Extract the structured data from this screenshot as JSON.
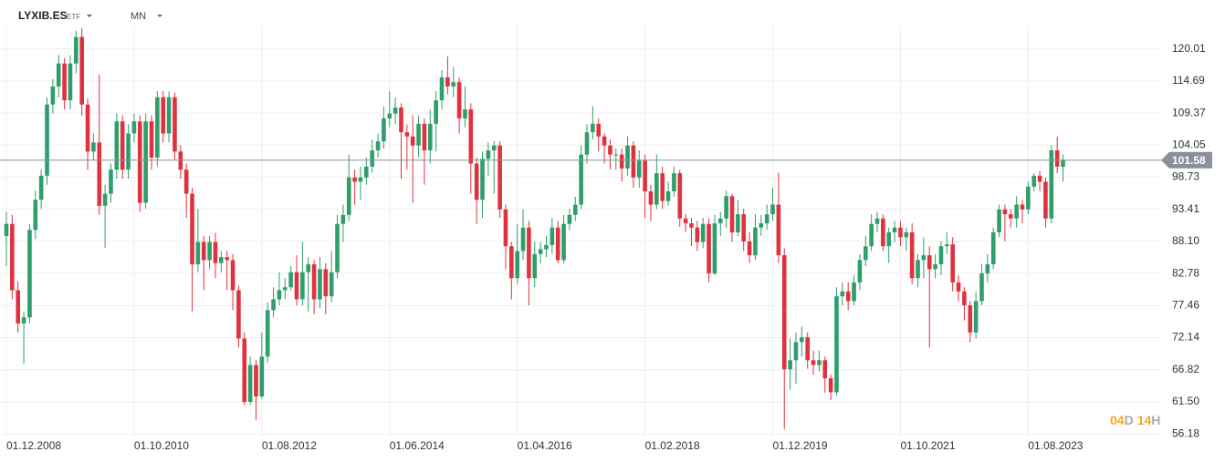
{
  "header": {
    "symbol": "LYXIB.ES",
    "asset_type": "ETF",
    "interval": "MN"
  },
  "countdown": {
    "days": "04",
    "day_unit": "D",
    "hours": "14",
    "hour_unit": "H"
  },
  "chart_data": {
    "type": "candlestick",
    "up_color": "#2e9e6b",
    "down_color": "#e0313f",
    "last_price": 101.58,
    "ylim": [
      55.6,
      123.9
    ],
    "yticks": [
      56.18,
      {
        "value": 61.5,
        "label": "61.50"
      },
      66.82,
      72.14,
      77.46,
      82.78,
      {
        "value": 88.1,
        "label": "88.10"
      },
      93.41,
      98.73,
      104.05,
      109.37,
      114.69,
      120.01
    ],
    "grid": true,
    "categories": [
      "01.12.2008",
      null,
      null,
      null,
      null,
      null,
      null,
      null,
      null,
      null,
      null,
      null,
      null,
      null,
      null,
      null,
      null,
      null,
      null,
      null,
      null,
      null,
      "01.10.2010",
      null,
      null,
      null,
      null,
      null,
      null,
      null,
      null,
      null,
      null,
      null,
      null,
      null,
      null,
      null,
      null,
      null,
      null,
      null,
      null,
      null,
      "01.08.2012",
      null,
      null,
      null,
      null,
      null,
      null,
      null,
      null,
      null,
      null,
      null,
      null,
      null,
      null,
      null,
      null,
      null,
      null,
      null,
      null,
      null,
      "01.06.2014",
      null,
      null,
      null,
      null,
      null,
      null,
      null,
      null,
      null,
      null,
      null,
      null,
      null,
      null,
      null,
      null,
      null,
      null,
      null,
      null,
      null,
      "01.04.2016",
      null,
      null,
      null,
      null,
      null,
      null,
      null,
      null,
      null,
      null,
      null,
      null,
      null,
      null,
      null,
      null,
      null,
      null,
      null,
      null,
      null,
      "01.02.2018",
      null,
      null,
      null,
      null,
      null,
      null,
      null,
      null,
      null,
      null,
      null,
      null,
      null,
      null,
      null,
      null,
      null,
      null,
      null,
      null,
      null,
      "01.12.2019",
      null,
      null,
      null,
      null,
      null,
      null,
      null,
      null,
      null,
      null,
      null,
      null,
      null,
      null,
      null,
      null,
      null,
      null,
      null,
      null,
      null,
      "01.10.2021",
      null,
      null,
      null,
      null,
      null,
      null,
      null,
      null,
      null,
      null,
      null,
      null,
      null,
      null,
      null,
      null,
      null,
      null,
      null,
      null,
      null,
      "01.08.2023",
      null,
      null,
      null,
      null,
      null,
      null
    ],
    "open": [
      89,
      91,
      80,
      74.5,
      75.5,
      90,
      95,
      99,
      110.8,
      113.8,
      117.6,
      111.5,
      117.6,
      122,
      110.8,
      103,
      104.5,
      94,
      96,
      100,
      108,
      100,
      106,
      108,
      94.5,
      108,
      102,
      112,
      106,
      112,
      103,
      100,
      96,
      84.3,
      88,
      85,
      88,
      84.5,
      85.5,
      85,
      80,
      72,
      61.5,
      67.6,
      62.4,
      69,
      76.7,
      78.5,
      80,
      80.5,
      83,
      78.5,
      83,
      84.3,
      78.5,
      83.5,
      79,
      83,
      91,
      92.5,
      98.7,
      98,
      98.7,
      100.5,
      103.2,
      104.7,
      108.5,
      109.3,
      110.3,
      106.2,
      105.5,
      104,
      107.6,
      103.2,
      107.6,
      111.5,
      115.3,
      113.8,
      114.5,
      108.5,
      110,
      101,
      95,
      101.8,
      103.2,
      104,
      93.4,
      87.3,
      82,
      86.5,
      90.4,
      82,
      86,
      86.8,
      87.5,
      90.4,
      85,
      91,
      92.5,
      94.2,
      102.5,
      106.2,
      107.6,
      105.5,
      104,
      102.5,
      102.5,
      100.2,
      104,
      98.7,
      101.5,
      96.4,
      94.2,
      99.4,
      94.8,
      96.4,
      99.4,
      91.9,
      91.1,
      90.4,
      88,
      91,
      82.8,
      91.1,
      91.9,
      95.6,
      89.6,
      92.6,
      88.1,
      85.8,
      90.4,
      91.1,
      92.6,
      94.2,
      85.8,
      66.9,
      68.4,
      71.4,
      72.2,
      68.4,
      67.6,
      68.4,
      65.4,
      63.1,
      79,
      79.8,
      78.2,
      81.3,
      85,
      87.3,
      91,
      91.9,
      87.3,
      89.6,
      90.4,
      88.8,
      89.6,
      82,
      85,
      85.8,
      83.5,
      84.3,
      87.3,
      87.6,
      81.3,
      79.8,
      77.5,
      73,
      78.2,
      82.8,
      84.3,
      89.6,
      93.4,
      92.6,
      91.9,
      94.2,
      93.4,
      97.2,
      99,
      98,
      91.9,
      103.2,
      100.5
    ],
    "high": [
      93,
      92.5,
      81.5,
      76.5,
      91,
      96.5,
      100,
      112,
      115,
      119,
      118.5,
      119,
      123,
      123.5,
      111.8,
      106,
      115.8,
      97.5,
      101,
      109.3,
      109,
      107.5,
      109.3,
      109,
      109.3,
      109,
      113,
      113,
      113,
      112.8,
      104,
      101,
      97,
      93.5,
      89,
      89,
      89.5,
      86.5,
      86.5,
      86,
      80.8,
      73,
      69,
      68.4,
      73,
      78,
      80.5,
      83,
      82,
      84,
      85.8,
      88,
      85.5,
      85,
      85.5,
      84.5,
      86.5,
      92.5,
      94.2,
      102.5,
      100,
      100.5,
      102,
      105,
      106,
      110.5,
      113,
      112,
      111,
      107.5,
      109,
      109,
      108.5,
      110,
      113,
      116.5,
      118.8,
      117,
      115.3,
      113.8,
      111,
      102,
      103,
      104.5,
      104.7,
      104.7,
      94.2,
      88,
      91,
      93.4,
      91.5,
      88,
      88,
      89,
      92,
      91.5,
      92.5,
      93.5,
      95.5,
      104,
      107.5,
      110.5,
      108.5,
      106,
      105,
      103.5,
      103.5,
      105.5,
      104.7,
      103.2,
      102.5,
      97.5,
      102.5,
      100.5,
      98,
      100.5,
      100,
      92.6,
      92,
      91.5,
      92,
      91.9,
      92.5,
      93,
      96.5,
      96,
      95,
      93.5,
      89.6,
      92.6,
      92.5,
      94.2,
      97,
      99.5,
      87,
      72,
      73,
      74,
      73,
      70,
      70,
      69,
      66,
      80.5,
      81.3,
      81.3,
      82.5,
      86,
      89,
      92.6,
      93,
      92.6,
      90.4,
      91.5,
      91.5,
      90.4,
      91.1,
      86,
      88.8,
      87.3,
      86,
      88.1,
      89.6,
      88.8,
      82.5,
      80.5,
      78.2,
      79.8,
      84.3,
      86,
      90.4,
      94.2,
      94.2,
      93.4,
      95.6,
      95,
      98,
      99.4,
      99.8,
      98.7,
      104,
      105.5,
      102.5
    ],
    "low": [
      84,
      78.5,
      73,
      67.8,
      74.5,
      88.5,
      93.5,
      97.5,
      109.3,
      112,
      110,
      110,
      116,
      109,
      100,
      101.5,
      92.5,
      87,
      94.5,
      98.5,
      98.5,
      98.5,
      104.5,
      93,
      93.5,
      100,
      100.5,
      104.5,
      104.5,
      101.5,
      98.5,
      92,
      76.5,
      83,
      80,
      83.5,
      82,
      83,
      80,
      76.7,
      70.5,
      61,
      61,
      58.5,
      62,
      68,
      75.5,
      77.5,
      78.5,
      80,
      77.5,
      77.5,
      76.5,
      76,
      77,
      76,
      78,
      82,
      88,
      91.5,
      94.2,
      95,
      97.5,
      99.5,
      102,
      103.5,
      107,
      107.5,
      98.5,
      100,
      94.5,
      102,
      97.5,
      101,
      103,
      110,
      112.5,
      112,
      106,
      107,
      96,
      91,
      92,
      99,
      96,
      92,
      83.5,
      78.5,
      81,
      85,
      77.5,
      80.5,
      84.5,
      85.5,
      86,
      84.5,
      84.5,
      90,
      91.5,
      93.5,
      101,
      105,
      103,
      101,
      100,
      100,
      98,
      99,
      97,
      97,
      92,
      91.5,
      93.5,
      93.5,
      94,
      95.5,
      90.5,
      89.6,
      87.3,
      86.5,
      87,
      81.3,
      82.5,
      89,
      90.4,
      88,
      89,
      86.5,
      84.5,
      85,
      89,
      90,
      91.5,
      84.5,
      57,
      63.5,
      64.5,
      69,
      67,
      66,
      66.5,
      63,
      61.8,
      62.5,
      77.5,
      76.7,
      77.5,
      80,
      84,
      86.5,
      89.6,
      86.5,
      84.5,
      88,
      87.3,
      86.5,
      81,
      80.5,
      82,
      70.5,
      82,
      82.5,
      86,
      79.8,
      78.2,
      75,
      71.4,
      72,
      77.5,
      81.3,
      83.5,
      88.8,
      88.1,
      90.4,
      90.4,
      91.1,
      92.6,
      96.4,
      96.4,
      90.4,
      91.1,
      99.4,
      98
    ],
    "close": [
      91,
      80,
      74.5,
      75.5,
      90,
      95,
      99,
      110.8,
      113.8,
      117.6,
      111.5,
      117.6,
      122,
      110.8,
      103,
      104.5,
      94,
      96,
      100,
      108,
      100,
      106,
      108,
      94.5,
      108,
      102,
      112,
      106,
      112,
      103,
      100,
      96,
      84.3,
      88,
      85,
      88,
      84.5,
      85.5,
      85,
      80,
      72,
      61.5,
      67.6,
      62.4,
      69,
      76.7,
      78.5,
      80,
      80.5,
      83,
      78.5,
      83,
      84.3,
      78.5,
      83.5,
      79,
      83,
      91,
      92.5,
      98.7,
      98,
      98.7,
      100.5,
      103.2,
      104.7,
      108.5,
      109.3,
      110.3,
      106.2,
      105.5,
      104,
      107.6,
      103.2,
      107.6,
      111.5,
      115.3,
      113.8,
      114.5,
      108.5,
      110,
      101,
      95,
      101.8,
      103.2,
      104,
      93.4,
      87.3,
      82,
      86.5,
      90.4,
      82,
      86,
      86.8,
      87.5,
      90.4,
      85,
      91,
      92.5,
      94.2,
      102.5,
      106.2,
      107.6,
      105.5,
      104,
      102.5,
      102.5,
      100.2,
      104,
      98.7,
      101.5,
      96.4,
      94.2,
      99.4,
      94.8,
      96.4,
      99.4,
      91.9,
      91.1,
      90.4,
      88,
      91,
      82.8,
      91.1,
      91.9,
      95.6,
      89.6,
      92.6,
      88.1,
      85.8,
      90.4,
      91.1,
      92.6,
      94.2,
      85.8,
      66.9,
      68.4,
      71.4,
      72.2,
      68.4,
      67.6,
      68.4,
      65.4,
      63.1,
      79,
      79.8,
      78.2,
      81.3,
      85,
      87.3,
      91,
      91.9,
      87.3,
      89.6,
      90.4,
      88.8,
      89.6,
      82,
      85,
      85.8,
      83.5,
      84.3,
      87.3,
      87.6,
      81.3,
      79.8,
      77.5,
      73,
      78.2,
      82.8,
      84.3,
      89.6,
      93.4,
      92.6,
      91.9,
      94.2,
      93.4,
      97.2,
      99,
      98,
      91.9,
      103.2,
      100.5,
      101.58
    ]
  }
}
